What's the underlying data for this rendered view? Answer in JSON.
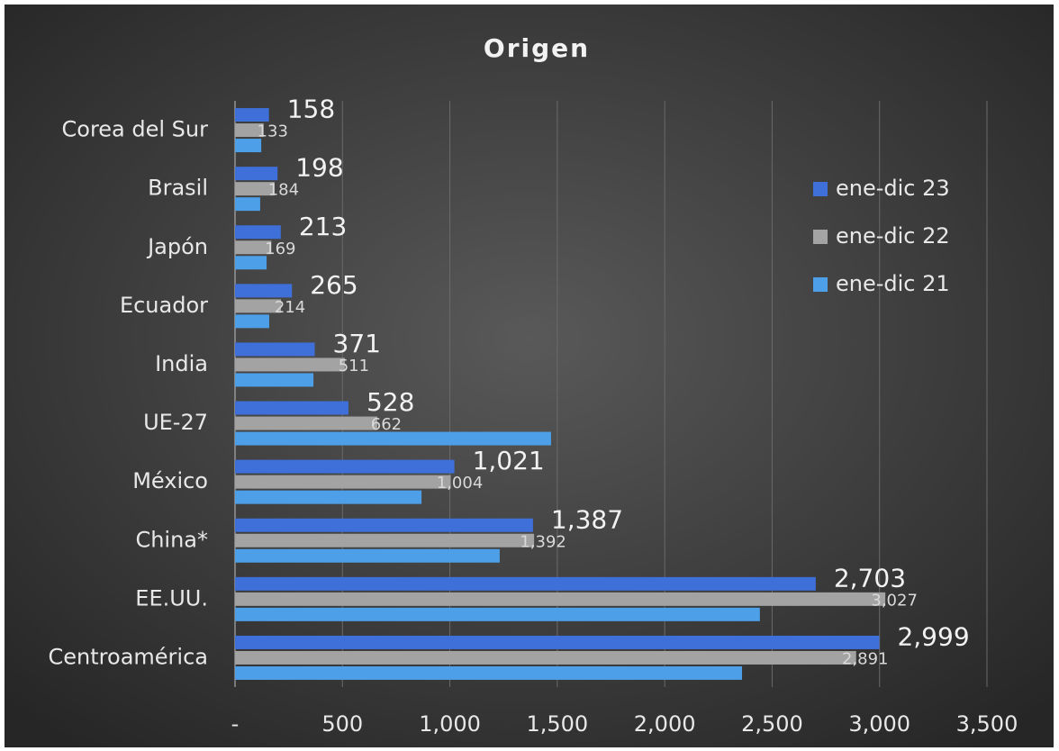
{
  "chart_data": {
    "type": "hbar",
    "title": "Origen",
    "categories": [
      "Corea del Sur",
      "Brasil",
      "Japón",
      "Ecuador",
      "India",
      "UE-27",
      "México",
      "China*",
      "EE.UU.",
      "Centroamérica"
    ],
    "series": [
      {
        "name": "ene-dic 23",
        "color": "#3f6fd8",
        "values": [
          158,
          198,
          213,
          265,
          371,
          528,
          1021,
          1387,
          2703,
          2999
        ],
        "value_labels": [
          "158",
          "198",
          "213",
          "265",
          "371",
          "528",
          "1,021",
          "1,387",
          "2,703",
          "2,999"
        ]
      },
      {
        "name": "ene-dic 22",
        "color": "#a3a3a3",
        "values": [
          133,
          184,
          169,
          214,
          511,
          662,
          1004,
          1392,
          3027,
          2891
        ],
        "value_labels": [
          "133",
          "184",
          "169",
          "214",
          "511",
          "662",
          "1,004",
          "1,392",
          "3,027",
          "2,891"
        ]
      },
      {
        "name": "ene-dic 21",
        "color": "#4d9fe8",
        "values": [
          122,
          117,
          147,
          159,
          365,
          1471,
          868,
          1232,
          2443,
          2360
        ]
      }
    ],
    "xlim": [
      0,
      3500
    ],
    "xticks": [
      {
        "value": 0,
        "label": "-"
      },
      500,
      {
        "value": 1000,
        "label": "1,000"
      },
      {
        "value": 1500,
        "label": "1,500"
      },
      {
        "value": 2000,
        "label": "2,000"
      },
      {
        "value": 2500,
        "label": "2,500"
      },
      {
        "value": 3000,
        "label": "3,000"
      },
      {
        "value": 3500,
        "label": "3,500"
      }
    ],
    "grid": true,
    "legend": "right"
  }
}
